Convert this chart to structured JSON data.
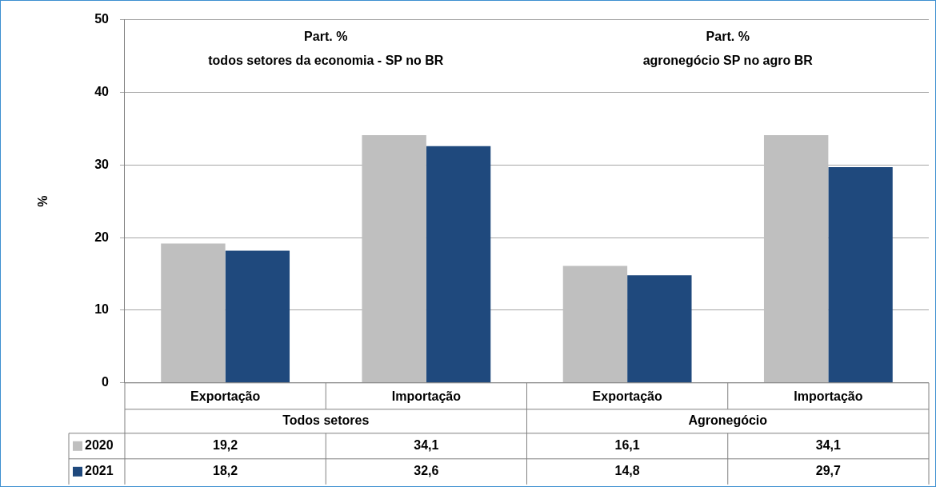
{
  "chart_data": {
    "type": "bar",
    "ylabel": "%",
    "categories": [
      "Exportação",
      "Importação",
      "Exportação",
      "Importação"
    ],
    "series": [
      {
        "name": "2020",
        "color": "#bfbfbf",
        "values": [
          19.2,
          34.1,
          16.1,
          34.1
        ],
        "value_labels": [
          "19,2",
          "34,1",
          "16,1",
          "34,1"
        ]
      },
      {
        "name": "2021",
        "color": "#1f497d",
        "values": [
          18.2,
          32.6,
          14.8,
          29.7
        ],
        "value_labels": [
          "18,2",
          "32,6",
          "14,8",
          "29,7"
        ]
      }
    ],
    "annotations": [
      "Todos setores",
      "Agronegócio",
      "Part. %\ntodos setores da economia - SP no BR",
      "Part. %\nagronegócio SP no agro BR"
    ],
    "ylim": [
      0,
      50
    ],
    "yticks": [
      0,
      10,
      20,
      30,
      40,
      50
    ],
    "grid": "y",
    "legend": "bottom"
  }
}
